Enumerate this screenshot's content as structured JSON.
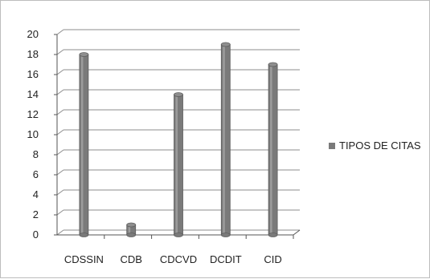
{
  "chart_data": {
    "type": "bar",
    "categories": [
      "CDSSIN",
      "CDB",
      "CDCVD",
      "DCDIT",
      "CID"
    ],
    "series": [
      {
        "name": "TIPOS DE CITAS",
        "values": [
          18,
          1,
          14,
          19,
          17
        ]
      }
    ],
    "ylim": [
      0,
      20
    ],
    "yticks": [
      0,
      2,
      4,
      6,
      8,
      10,
      12,
      14,
      16,
      18,
      20
    ],
    "grid": true,
    "legend_position": "right",
    "bar_color": "#7a7a7a",
    "grid_color": "#8c8c8c"
  }
}
